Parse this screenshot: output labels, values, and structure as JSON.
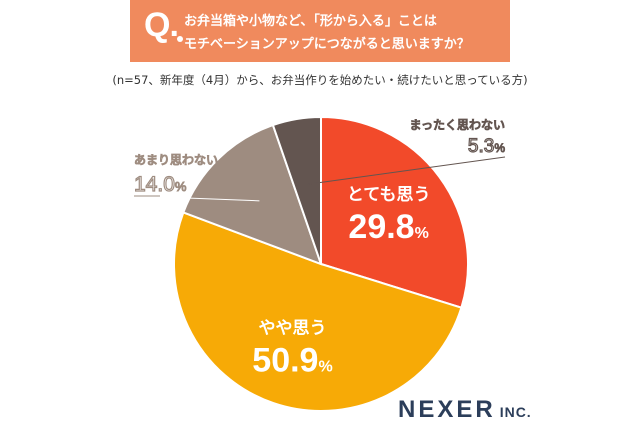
{
  "question": {
    "mark": "Q.",
    "line1": "お弁当箱や小物など、「形から入る」ことは",
    "line2": "モチベーションアップにつながると思いますか？"
  },
  "subtitle": "(n=57、新年度（4月）から、お弁当作りを始めたい・続けたいと思っている方)",
  "brand": {
    "name": "NEXER",
    "suffix": "INC."
  },
  "chart_data": {
    "type": "pie",
    "start": "12 o'clock",
    "direction": "clockwise",
    "slices": [
      {
        "label": "とても思う",
        "value": 29.8,
        "display": "29.8",
        "unit": "%",
        "color": "#f24a2a",
        "label_style": "inside"
      },
      {
        "label": "やや思う",
        "value": 50.9,
        "display": "50.9",
        "unit": "%",
        "color": "#f7aa06",
        "label_style": "inside"
      },
      {
        "label": "あまり思わない",
        "value": 14.0,
        "display": "14.0",
        "unit": "%",
        "color": "#9e8c80",
        "label_style": "callout-left"
      },
      {
        "label": "まったく思わない",
        "value": 5.3,
        "display": "5.3",
        "unit": "%",
        "color": "#635550",
        "label_style": "callout-right"
      }
    ]
  }
}
